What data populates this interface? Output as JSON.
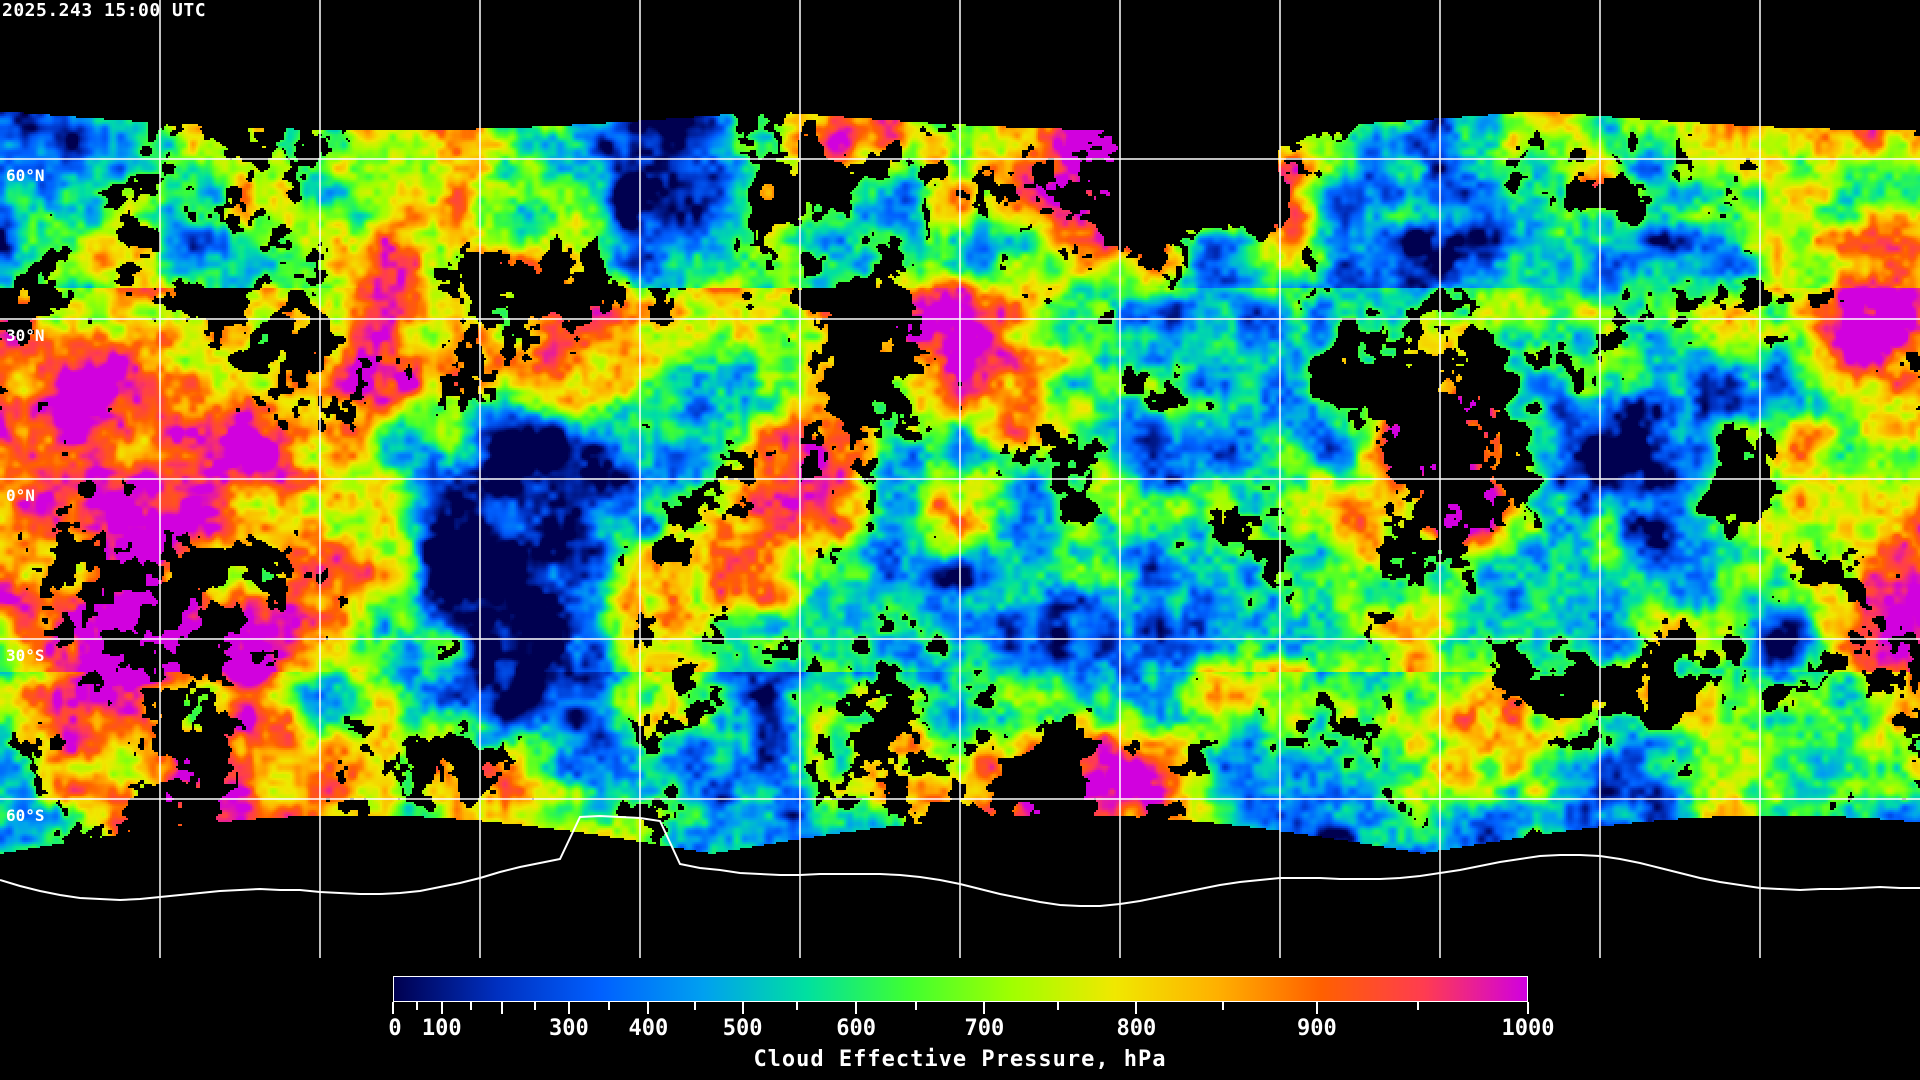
{
  "header": {
    "timestamp": "2025.243 15:00 UTC"
  },
  "map": {
    "projection": "equirectangular",
    "gridlines": true,
    "lat_labels": [
      "60°N",
      "30°N",
      "0°N",
      "30°S",
      "60°S"
    ],
    "grid_color": "#ffffff",
    "coastline_color": "#ffffff",
    "no_data_color": "#000000"
  },
  "colorbar": {
    "title": "Cloud Effective Pressure, hPa",
    "range": [
      0,
      1000
    ],
    "tick_labels": [
      "0",
      "100",
      "300",
      "400",
      "500",
      "600",
      "700",
      "800",
      "900",
      "1000"
    ],
    "colors": [
      "#000050",
      "#0030c0",
      "#0060ff",
      "#00a0f0",
      "#00e0a0",
      "#40ff30",
      "#a0ff00",
      "#f0e800",
      "#ffb000",
      "#ff6000",
      "#ff3c50",
      "#d000e0"
    ]
  }
}
